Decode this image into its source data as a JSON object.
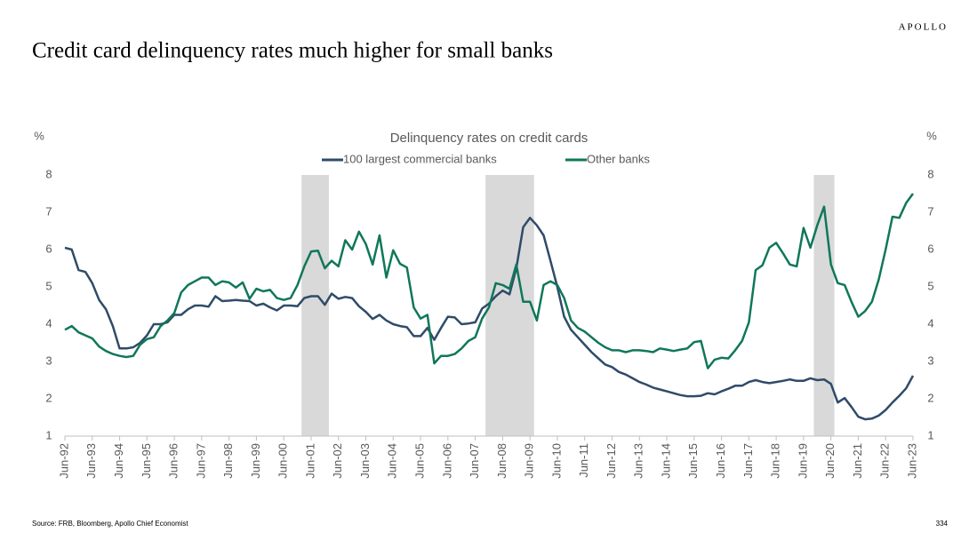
{
  "brand": "APOLLO",
  "title": "Credit card delinquency rates much higher for small banks",
  "source": "Source: FRB, Bloomberg, Apollo Chief Economist",
  "page_number": "334",
  "chart_data": {
    "type": "line",
    "title": "Delinquency rates on credit cards",
    "y_label": "%",
    "y2_label": "%",
    "categories": [
      "Jun-92",
      null,
      null,
      null,
      "Jun-93",
      null,
      null,
      null,
      "Jun-94",
      null,
      null,
      null,
      "Jun-95",
      null,
      null,
      null,
      "Jun-96",
      null,
      null,
      null,
      "Jun-97",
      null,
      null,
      null,
      "Jun-98",
      null,
      null,
      null,
      "Jun-99",
      null,
      null,
      null,
      "Jun-00",
      null,
      null,
      null,
      "Jun-01",
      null,
      null,
      null,
      "Jun-02",
      null,
      null,
      null,
      "Jun-03",
      null,
      null,
      null,
      "Jun-04",
      null,
      null,
      null,
      "Jun-05",
      null,
      null,
      null,
      "Jun-06",
      null,
      null,
      null,
      "Jun-07",
      null,
      null,
      null,
      "Jun-08",
      null,
      null,
      null,
      "Jun-09",
      null,
      null,
      null,
      "Jun-10",
      null,
      null,
      null,
      "Jun-11",
      null,
      null,
      null,
      "Jun-12",
      null,
      null,
      null,
      "Jun-13",
      null,
      null,
      null,
      "Jun-14",
      null,
      null,
      null,
      "Jun-15",
      null,
      null,
      null,
      "Jun-16",
      null,
      null,
      null,
      "Jun-17",
      null,
      null,
      null,
      "Jun-18",
      null,
      null,
      null,
      "Jun-19",
      null,
      null,
      null,
      "Jun-20",
      null,
      null,
      null,
      "Jun-21",
      null,
      null,
      null,
      "Jun-22",
      null,
      null,
      null,
      "Jun-23"
    ],
    "series": [
      {
        "name": "100 largest commercial banks",
        "color": "#2f4b68",
        "values": [
          6.05,
          6.0,
          5.45,
          5.4,
          5.1,
          4.65,
          4.4,
          3.95,
          3.35,
          3.35,
          3.38,
          3.5,
          3.7,
          4.0,
          4.0,
          4.05,
          4.25,
          4.25,
          4.4,
          4.5,
          4.5,
          4.47,
          4.75,
          4.62,
          4.63,
          4.65,
          4.63,
          4.62,
          4.5,
          4.55,
          4.45,
          4.37,
          4.5,
          4.5,
          4.48,
          4.7,
          4.75,
          4.75,
          4.52,
          4.82,
          4.68,
          4.73,
          4.7,
          4.48,
          4.33,
          4.14,
          4.25,
          4.1,
          4.0,
          3.95,
          3.92,
          3.68,
          3.68,
          3.9,
          3.58,
          3.9,
          4.2,
          4.18,
          4.0,
          4.02,
          4.05,
          4.42,
          4.55,
          4.75,
          4.9,
          4.8,
          5.5,
          6.6,
          6.85,
          6.65,
          6.38,
          5.7,
          5.0,
          4.2,
          3.85,
          3.65,
          3.45,
          3.25,
          3.08,
          2.92,
          2.85,
          2.72,
          2.65,
          2.55,
          2.45,
          2.38,
          2.3,
          2.25,
          2.2,
          2.15,
          2.1,
          2.07,
          2.07,
          2.08,
          2.15,
          2.12,
          2.2,
          2.27,
          2.35,
          2.35,
          2.45,
          2.5,
          2.45,
          2.42,
          2.45,
          2.48,
          2.52,
          2.48,
          2.48,
          2.55,
          2.5,
          2.52,
          2.4,
          1.9,
          2.02,
          1.78,
          1.52,
          1.45,
          1.47,
          1.55,
          1.7,
          1.9,
          2.08,
          2.28,
          2.62
        ]
      },
      {
        "name": "Other banks",
        "color": "#10775a",
        "values": [
          3.85,
          3.95,
          3.78,
          3.7,
          3.62,
          3.4,
          3.28,
          3.2,
          3.15,
          3.12,
          3.15,
          3.45,
          3.6,
          3.65,
          3.95,
          4.1,
          4.3,
          4.85,
          5.05,
          5.15,
          5.25,
          5.25,
          5.05,
          5.15,
          5.12,
          4.98,
          5.12,
          4.68,
          4.95,
          4.88,
          4.92,
          4.7,
          4.65,
          4.7,
          5.05,
          5.55,
          5.95,
          5.97,
          5.5,
          5.7,
          5.55,
          6.25,
          6.0,
          6.48,
          6.15,
          5.6,
          6.38,
          5.25,
          5.98,
          5.62,
          5.52,
          4.45,
          4.15,
          4.25,
          2.95,
          3.15,
          3.15,
          3.2,
          3.35,
          3.55,
          3.65,
          4.15,
          4.45,
          5.1,
          5.05,
          4.95,
          5.6,
          4.6,
          4.6,
          4.1,
          5.05,
          5.15,
          5.05,
          4.7,
          4.1,
          3.9,
          3.8,
          3.65,
          3.5,
          3.38,
          3.3,
          3.3,
          3.25,
          3.3,
          3.3,
          3.28,
          3.25,
          3.35,
          3.32,
          3.28,
          3.32,
          3.35,
          3.52,
          3.55,
          2.82,
          3.05,
          3.1,
          3.08,
          3.3,
          3.55,
          4.05,
          5.45,
          5.58,
          6.05,
          6.18,
          5.9,
          5.6,
          5.55,
          6.58,
          6.05,
          6.65,
          7.15,
          5.6,
          5.1,
          5.05,
          4.6,
          4.2,
          4.35,
          4.6,
          5.2,
          6.0,
          6.88,
          6.85,
          7.25,
          7.5
        ]
      }
    ],
    "recession_bands": [
      [
        34.6,
        38.6
      ],
      [
        61.5,
        68.6
      ],
      [
        109.5,
        112.5
      ]
    ],
    "band_color": "#d9d9d9",
    "ylim": [
      1,
      8
    ],
    "yticks": [
      1,
      2,
      3,
      4,
      5,
      6,
      7,
      8
    ],
    "y2lim": [
      1,
      8
    ],
    "y2ticks": [
      1,
      2,
      3,
      4,
      5,
      6,
      7,
      8
    ],
    "legend": "top"
  }
}
